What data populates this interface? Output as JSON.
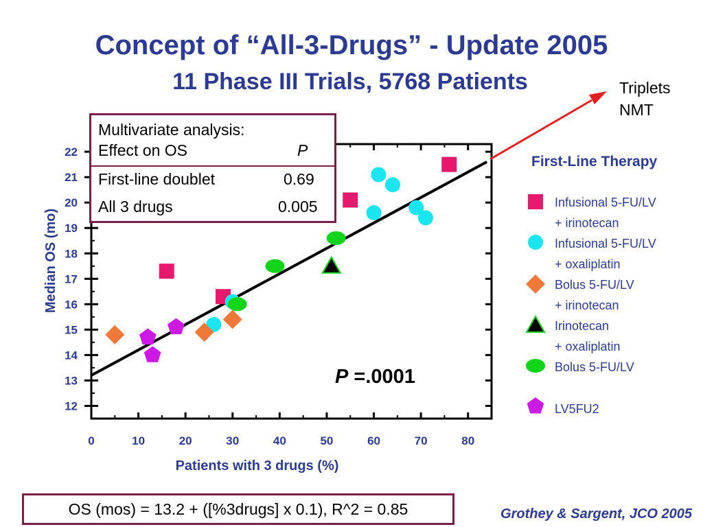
{
  "title": "Concept of “All-3-Drugs” - Update 2005",
  "subtitle": "11 Phase III Trials, 5768 Patients",
  "annotation": {
    "line1": "Triplets",
    "line2": "NMT"
  },
  "stats_box": {
    "header_line1": "Multivariate analysis:",
    "header_effect": "Effect on OS",
    "header_p": "P",
    "rows": [
      {
        "label": "First-line doublet",
        "value": "0.69"
      },
      {
        "label": "All 3 drugs",
        "value": "0.005"
      }
    ]
  },
  "p_value": {
    "label": "P",
    "value": " =.0001"
  },
  "formula": "OS (mos) = 13.2 + ([%3drugs] x 0.1), R^2 = 0.85",
  "citation": "Grothey & Sargent, JCO 2005",
  "legend": {
    "title": "First-Line Therapy",
    "items": [
      {
        "line1": "Infusional 5-FU/LV",
        "line2": "+ irinotecan",
        "shape": "square",
        "color": "#e8196c"
      },
      {
        "line1": "Infusional 5-FU/LV",
        "line2": "+ oxaliplatin",
        "shape": "circle",
        "color": "#19e6f0"
      },
      {
        "line1": "Bolus 5-FU/LV",
        "line2": "+ irinotecan",
        "shape": "diamond",
        "color": "#f07838"
      },
      {
        "line1": "Irinotecan",
        "line2": "+ oxaliplatin",
        "shape": "triangle",
        "color": "#000000"
      },
      {
        "line1": "Bolus 5-FU/LV",
        "line2": "",
        "shape": "ellipse",
        "color": "#12d41a"
      },
      {
        "line1": "LV5FU2",
        "line2": "",
        "shape": "pentagon",
        "color": "#cc19e6"
      }
    ]
  },
  "colors": {
    "title": "#2b3b93",
    "box_border": "#7b1f4a",
    "arrow": "#e52020"
  },
  "chart_data": {
    "type": "scatter",
    "xlabel": "Patients with 3 drugs (%)",
    "ylabel": "Median OS (mo)",
    "xlim": [
      0,
      85
    ],
    "ylim": [
      11.5,
      22.3
    ],
    "x_ticks": [
      "0",
      "10",
      "20",
      "30",
      "40",
      "50",
      "60",
      "70",
      "80"
    ],
    "y_ticks": [
      "12",
      "13",
      "14",
      "15",
      "16",
      "17",
      "18",
      "19",
      "20",
      "21",
      "22"
    ],
    "series": [
      {
        "shape": "square",
        "color": "#e8196c",
        "points": [
          [
            16,
            17.3
          ],
          [
            28,
            16.3
          ],
          [
            55,
            20.1
          ],
          [
            76,
            21.5
          ]
        ]
      },
      {
        "shape": "circle",
        "color": "#19e6f0",
        "points": [
          [
            26,
            15.2
          ],
          [
            30,
            16.1
          ],
          [
            61,
            21.1
          ],
          [
            64,
            20.7
          ],
          [
            60,
            19.6
          ],
          [
            69,
            19.8
          ],
          [
            71,
            19.4
          ]
        ]
      },
      {
        "shape": "diamond",
        "color": "#f07838",
        "points": [
          [
            5,
            14.8
          ],
          [
            24,
            14.9
          ],
          [
            30,
            15.4
          ]
        ]
      },
      {
        "shape": "triangle",
        "color": "#000000",
        "points": [
          [
            51,
            17.5
          ]
        ]
      },
      {
        "shape": "ellipse",
        "color": "#12d41a",
        "points": [
          [
            31,
            16.0
          ],
          [
            39,
            17.5
          ],
          [
            52,
            18.6
          ]
        ]
      },
      {
        "shape": "pentagon",
        "color": "#cc19e6",
        "points": [
          [
            12,
            14.7
          ],
          [
            13,
            14.0
          ],
          [
            18,
            15.1
          ]
        ]
      }
    ],
    "regression": {
      "intercept": 13.2,
      "slope": 0.1
    }
  }
}
